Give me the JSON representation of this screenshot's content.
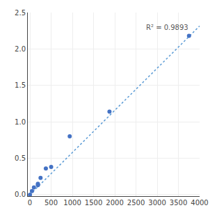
{
  "chart_data": {
    "type": "scatter",
    "series": [
      {
        "type": "scatter",
        "marker": "circle",
        "color": "#4472c4",
        "x": [
          0,
          46.875,
          93.75,
          187.5,
          187.5,
          250,
          375,
          500,
          937.5,
          1875,
          3750
        ],
        "values": [
          0.0,
          0.05,
          0.1,
          0.13,
          0.15,
          0.23,
          0.36,
          0.38,
          0.8,
          1.14,
          2.18
        ]
      },
      {
        "type": "line",
        "line_style": "dotted",
        "color": "#5b9bd5",
        "x": [
          0,
          4000
        ],
        "values": [
          0.0,
          2.315
        ]
      }
    ],
    "annotations": [
      {
        "text": "R² = 0.9893",
        "x": 2700,
        "y": 2.22
      }
    ],
    "xlim": [
      -50,
      4000
    ],
    "ylim": [
      -0.02,
      2.5
    ],
    "xticks": [
      0,
      500,
      1000,
      1500,
      2000,
      2500,
      3000,
      3500,
      4000
    ],
    "yticks": [
      {
        "value": 0,
        "label": "0.0"
      },
      0.5,
      {
        "value": 1,
        "label": "1.0"
      },
      1.5,
      {
        "value": 2,
        "label": "2.0"
      },
      2.5
    ],
    "grid": true
  }
}
